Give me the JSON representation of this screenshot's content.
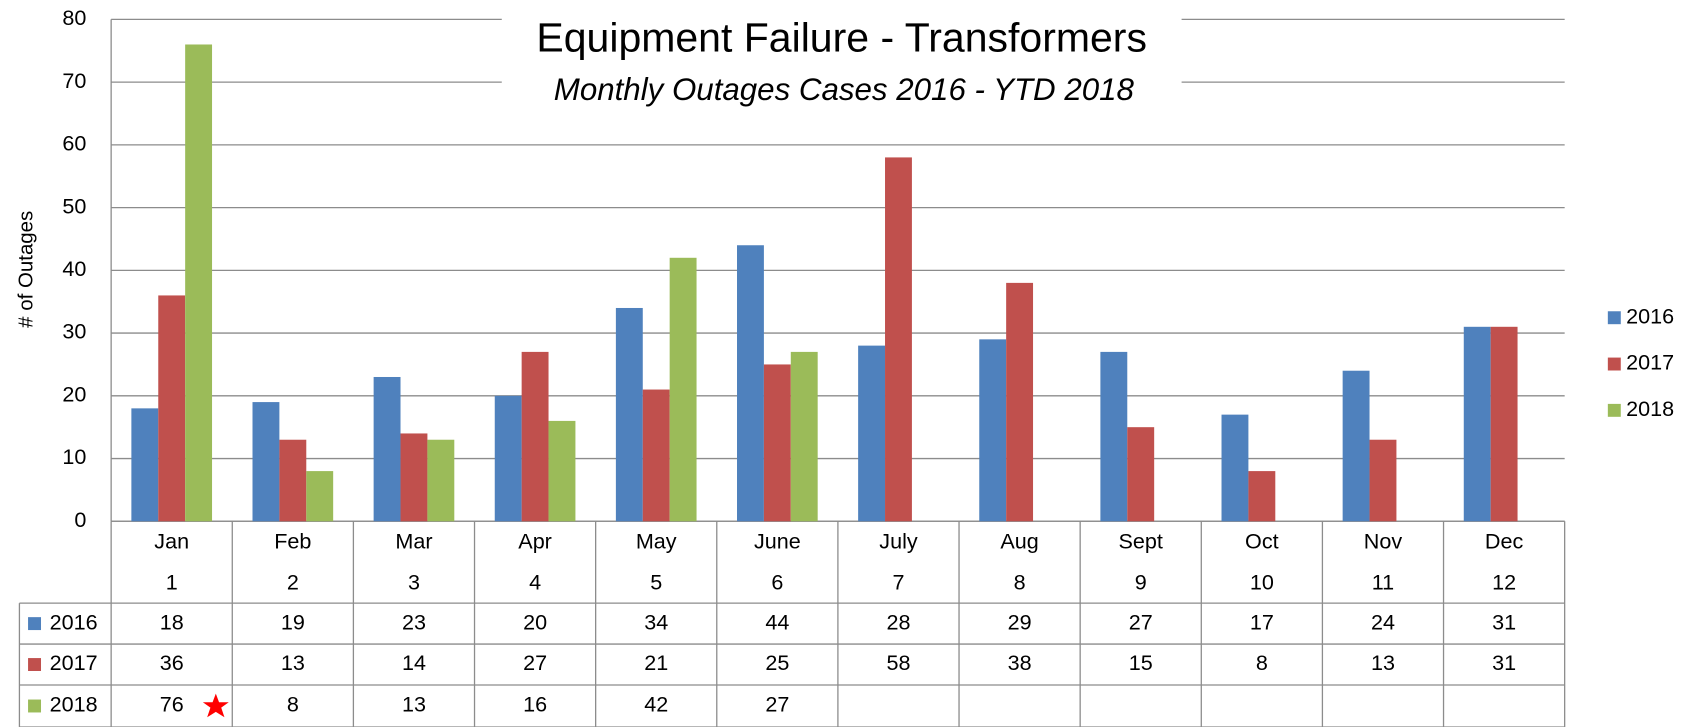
{
  "chart_data": {
    "type": "bar",
    "title": "Equipment Failure - Transformers",
    "subtitle": "Monthly Outages Cases 2016 - YTD 2018",
    "y_label": "# of Outages",
    "categories": [
      "Jan",
      "Feb",
      "Mar",
      "Apr",
      "May",
      "June",
      "July",
      "Aug",
      "Sept",
      "Oct",
      "Nov",
      "Dec"
    ],
    "category_numbers": [
      1,
      2,
      3,
      4,
      5,
      6,
      7,
      8,
      9,
      10,
      11,
      12
    ],
    "series": [
      {
        "name": "2016",
        "color": "#4f81bd",
        "values": [
          18,
          19,
          23,
          20,
          34,
          44,
          28,
          29,
          27,
          17,
          24,
          31
        ]
      },
      {
        "name": "2017",
        "color": "#c0504d",
        "values": [
          36,
          13,
          14,
          27,
          21,
          25,
          58,
          38,
          15,
          8,
          13,
          31
        ]
      },
      {
        "name": "2018",
        "color": "#9bbb59",
        "values": [
          76,
          8,
          13,
          16,
          42,
          27,
          null,
          null,
          null,
          null,
          null,
          null
        ]
      }
    ],
    "ylim": [
      0,
      80
    ],
    "yticks": [
      0,
      10,
      20,
      30,
      40,
      50,
      60,
      70,
      80
    ],
    "grid": true,
    "legend": "right"
  }
}
